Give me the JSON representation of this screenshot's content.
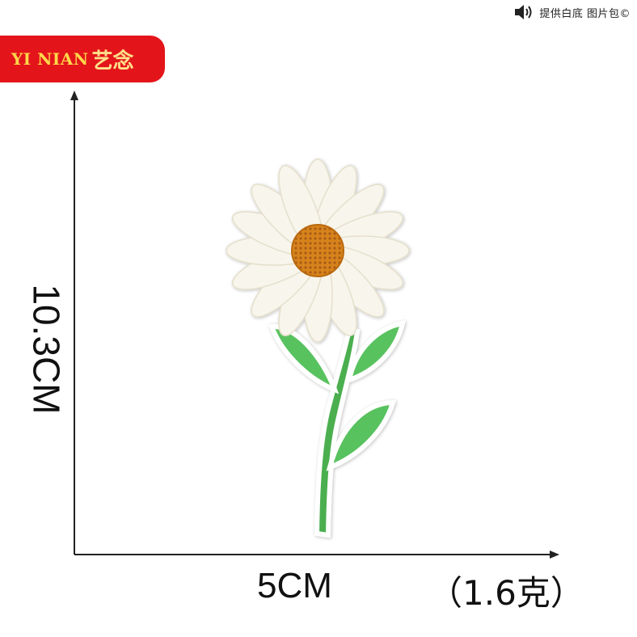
{
  "brand": {
    "latin": "YI NIAN",
    "cjk": "艺念",
    "bg_color": "#e3151a",
    "text_color": "#ffd84a"
  },
  "top_note": {
    "icon": "speaker-icon",
    "text": "提供白底 图片包©"
  },
  "dimensions": {
    "height_label": "10.3CM",
    "width_label": "5CM",
    "weight_label": "（1.6克）"
  },
  "product": {
    "petal_color": "#f8f5ec",
    "center_color": "#d7831f",
    "stem_color": "#4caf50"
  }
}
